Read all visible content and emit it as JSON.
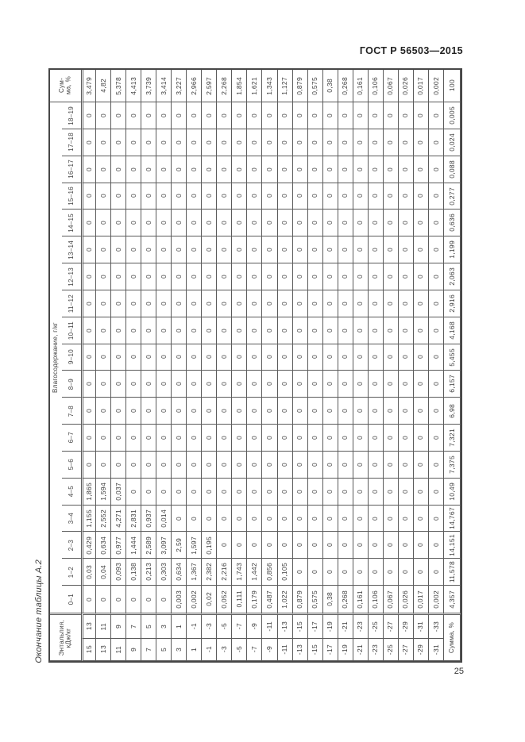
{
  "page": {
    "standard_ref": "ГОСТ Р 56503—2015",
    "table_caption": "Окончание таблицы А.2",
    "page_number": "25"
  },
  "table": {
    "row_sum_header": {
      "label": "Сумма, %",
      "lines": [
        "Сум-",
        "ма, %"
      ]
    },
    "col_group_header": "Влагосодержание, г/кг",
    "stub_header": {
      "label": "Энтальпия, кДж/кг",
      "lines": [
        "Энтальпия,",
        "кДж/кг"
      ]
    },
    "col_sum_header": "Сумма, %",
    "grand_total": "100",
    "row_sums_by_enthalpy": [
      "3,479",
      "4,82",
      "5,378",
      "4,413",
      "3,739",
      "3,414",
      "3,227",
      "2,966",
      "2,597",
      "2,268",
      "1,854",
      "1,621",
      "1,343",
      "1,127",
      "0,879",
      "0,575",
      "0,38",
      "0,268",
      "0,161",
      "0,106",
      "0,067",
      "0,026",
      "0,017",
      "0,002"
    ],
    "enthalpy_bounds_upper_row": [
      "13",
      "11",
      "9",
      "7",
      "5",
      "3",
      "1",
      "-1",
      "-3",
      "-5",
      "-7",
      "-9",
      "-11",
      "-13",
      "-15",
      "-17",
      "-19",
      "-21",
      "-23",
      "-25",
      "-27",
      "-29",
      "-31",
      "-33"
    ],
    "enthalpy_bounds_lower_row": [
      "15",
      "13",
      "11",
      "9",
      "7",
      "5",
      "3",
      "1",
      "-1",
      "-3",
      "-5",
      "-7",
      "-9",
      "-11",
      "-13",
      "-15",
      "-17",
      "-19",
      "-21",
      "-23",
      "-25",
      "-27",
      "-29",
      "-31"
    ],
    "moisture_rows": [
      {
        "range": "18–19",
        "values": [
          "0",
          "0",
          "0",
          "0",
          "0",
          "0",
          "0",
          "0",
          "0",
          "0",
          "0",
          "0",
          "0",
          "0",
          "0",
          "0",
          "0",
          "0",
          "0",
          "0",
          "0",
          "0",
          "0",
          "0"
        ],
        "sum": "0,005"
      },
      {
        "range": "17–18",
        "values": [
          "0",
          "0",
          "0",
          "0",
          "0",
          "0",
          "0",
          "0",
          "0",
          "0",
          "0",
          "0",
          "0",
          "0",
          "0",
          "0",
          "0",
          "0",
          "0",
          "0",
          "0",
          "0",
          "0",
          "0"
        ],
        "sum": "0,024"
      },
      {
        "range": "16–17",
        "values": [
          "0",
          "0",
          "0",
          "0",
          "0",
          "0",
          "0",
          "0",
          "0",
          "0",
          "0",
          "0",
          "0",
          "0",
          "0",
          "0",
          "0",
          "0",
          "0",
          "0",
          "0",
          "0",
          "0",
          "0"
        ],
        "sum": "0,088"
      },
      {
        "range": "15–16",
        "values": [
          "0",
          "0",
          "0",
          "0",
          "0",
          "0",
          "0",
          "0",
          "0",
          "0",
          "0",
          "0",
          "0",
          "0",
          "0",
          "0",
          "0",
          "0",
          "0",
          "0",
          "0",
          "0",
          "0",
          "0"
        ],
        "sum": "0,277"
      },
      {
        "range": "14–15",
        "values": [
          "0",
          "0",
          "0",
          "0",
          "0",
          "0",
          "0",
          "0",
          "0",
          "0",
          "0",
          "0",
          "0",
          "0",
          "0",
          "0",
          "0",
          "0",
          "0",
          "0",
          "0",
          "0",
          "0",
          "0"
        ],
        "sum": "0,636"
      },
      {
        "range": "13–14",
        "values": [
          "0",
          "0",
          "0",
          "0",
          "0",
          "0",
          "0",
          "0",
          "0",
          "0",
          "0",
          "0",
          "0",
          "0",
          "0",
          "0",
          "0",
          "0",
          "0",
          "0",
          "0",
          "0",
          "0",
          "0"
        ],
        "sum": "1,199"
      },
      {
        "range": "12–13",
        "values": [
          "0",
          "0",
          "0",
          "0",
          "0",
          "0",
          "0",
          "0",
          "0",
          "0",
          "0",
          "0",
          "0",
          "0",
          "0",
          "0",
          "0",
          "0",
          "0",
          "0",
          "0",
          "0",
          "0",
          "0"
        ],
        "sum": "2,063"
      },
      {
        "range": "11–12",
        "values": [
          "0",
          "0",
          "0",
          "0",
          "0",
          "0",
          "0",
          "0",
          "0",
          "0",
          "0",
          "0",
          "0",
          "0",
          "0",
          "0",
          "0",
          "0",
          "0",
          "0",
          "0",
          "0",
          "0",
          "0"
        ],
        "sum": "2,916"
      },
      {
        "range": "10–11",
        "values": [
          "0",
          "0",
          "0",
          "0",
          "0",
          "0",
          "0",
          "0",
          "0",
          "0",
          "0",
          "0",
          "0",
          "0",
          "0",
          "0",
          "0",
          "0",
          "0",
          "0",
          "0",
          "0",
          "0",
          "0"
        ],
        "sum": "4,168"
      },
      {
        "range": "9–10",
        "values": [
          "0",
          "0",
          "0",
          "0",
          "0",
          "0",
          "0",
          "0",
          "0",
          "0",
          "0",
          "0",
          "0",
          "0",
          "0",
          "0",
          "0",
          "0",
          "0",
          "0",
          "0",
          "0",
          "0",
          "0"
        ],
        "sum": "5,455"
      },
      {
        "range": "8–9",
        "values": [
          "0",
          "0",
          "0",
          "0",
          "0",
          "0",
          "0",
          "0",
          "0",
          "0",
          "0",
          "0",
          "0",
          "0",
          "0",
          "0",
          "0",
          "0",
          "0",
          "0",
          "0",
          "0",
          "0",
          "0"
        ],
        "sum": "6,157"
      },
      {
        "range": "7–8",
        "values": [
          "0",
          "0",
          "0",
          "0",
          "0",
          "0",
          "0",
          "0",
          "0",
          "0",
          "0",
          "0",
          "0",
          "0",
          "0",
          "0",
          "0",
          "0",
          "0",
          "0",
          "0",
          "0",
          "0",
          "0"
        ],
        "sum": "6,98"
      },
      {
        "range": "6–7",
        "values": [
          "0",
          "0",
          "0",
          "0",
          "0",
          "0",
          "0",
          "0",
          "0",
          "0",
          "0",
          "0",
          "0",
          "0",
          "0",
          "0",
          "0",
          "0",
          "0",
          "0",
          "0",
          "0",
          "0",
          "0"
        ],
        "sum": "7,321"
      },
      {
        "range": "5–6",
        "values": [
          "0",
          "0",
          "0",
          "0",
          "0",
          "0",
          "0",
          "0",
          "0",
          "0",
          "0",
          "0",
          "0",
          "0",
          "0",
          "0",
          "0",
          "0",
          "0",
          "0",
          "0",
          "0",
          "0",
          "0"
        ],
        "sum": "7,375"
      },
      {
        "range": "4–5",
        "values": [
          "1,865",
          "1,594",
          "0,037",
          "0",
          "0",
          "0",
          "0",
          "0",
          "0",
          "0",
          "0",
          "0",
          "0",
          "0",
          "0",
          "0",
          "0",
          "0",
          "0",
          "0",
          "0",
          "0",
          "0",
          "0"
        ],
        "sum": "10,49"
      },
      {
        "range": "3–4",
        "values": [
          "1,155",
          "2,552",
          "4,271",
          "2,831",
          "0,937",
          "0,014",
          "0",
          "0",
          "0",
          "0",
          "0",
          "0",
          "0",
          "0",
          "0",
          "0",
          "0",
          "0",
          "0",
          "0",
          "0",
          "0",
          "0",
          "0"
        ],
        "sum": "14,767"
      },
      {
        "range": "2–3",
        "values": [
          "0,429",
          "0,634",
          "0,977",
          "1,444",
          "2,589",
          "3,097",
          "2,59",
          "1,597",
          "0,195",
          "0",
          "0",
          "0",
          "0",
          "0",
          "0",
          "0",
          "0",
          "0",
          "0",
          "0",
          "0",
          "0",
          "0",
          "0"
        ],
        "sum": "14,151"
      },
      {
        "range": "1–2",
        "values": [
          "0,03",
          "0,04",
          "0,093",
          "0,138",
          "0,213",
          "0,303",
          "0,634",
          "1,367",
          "2,382",
          "2,216",
          "1,743",
          "1,442",
          "0,856",
          "0,105",
          "0",
          "0",
          "0",
          "0",
          "0",
          "0",
          "0",
          "0",
          "0",
          "0"
        ],
        "sum": "11,578"
      },
      {
        "range": "0–1",
        "values": [
          "0",
          "0",
          "0",
          "0",
          "0",
          "0",
          "0,003",
          "0,002",
          "0,02",
          "0,052",
          "0,111",
          "0,179",
          "0,487",
          "1,022",
          "0,879",
          "0,575",
          "0,38",
          "0,268",
          "0,161",
          "0,106",
          "0,067",
          "0,026",
          "0,017",
          "0,002"
        ],
        "sum": "4,357"
      }
    ]
  }
}
